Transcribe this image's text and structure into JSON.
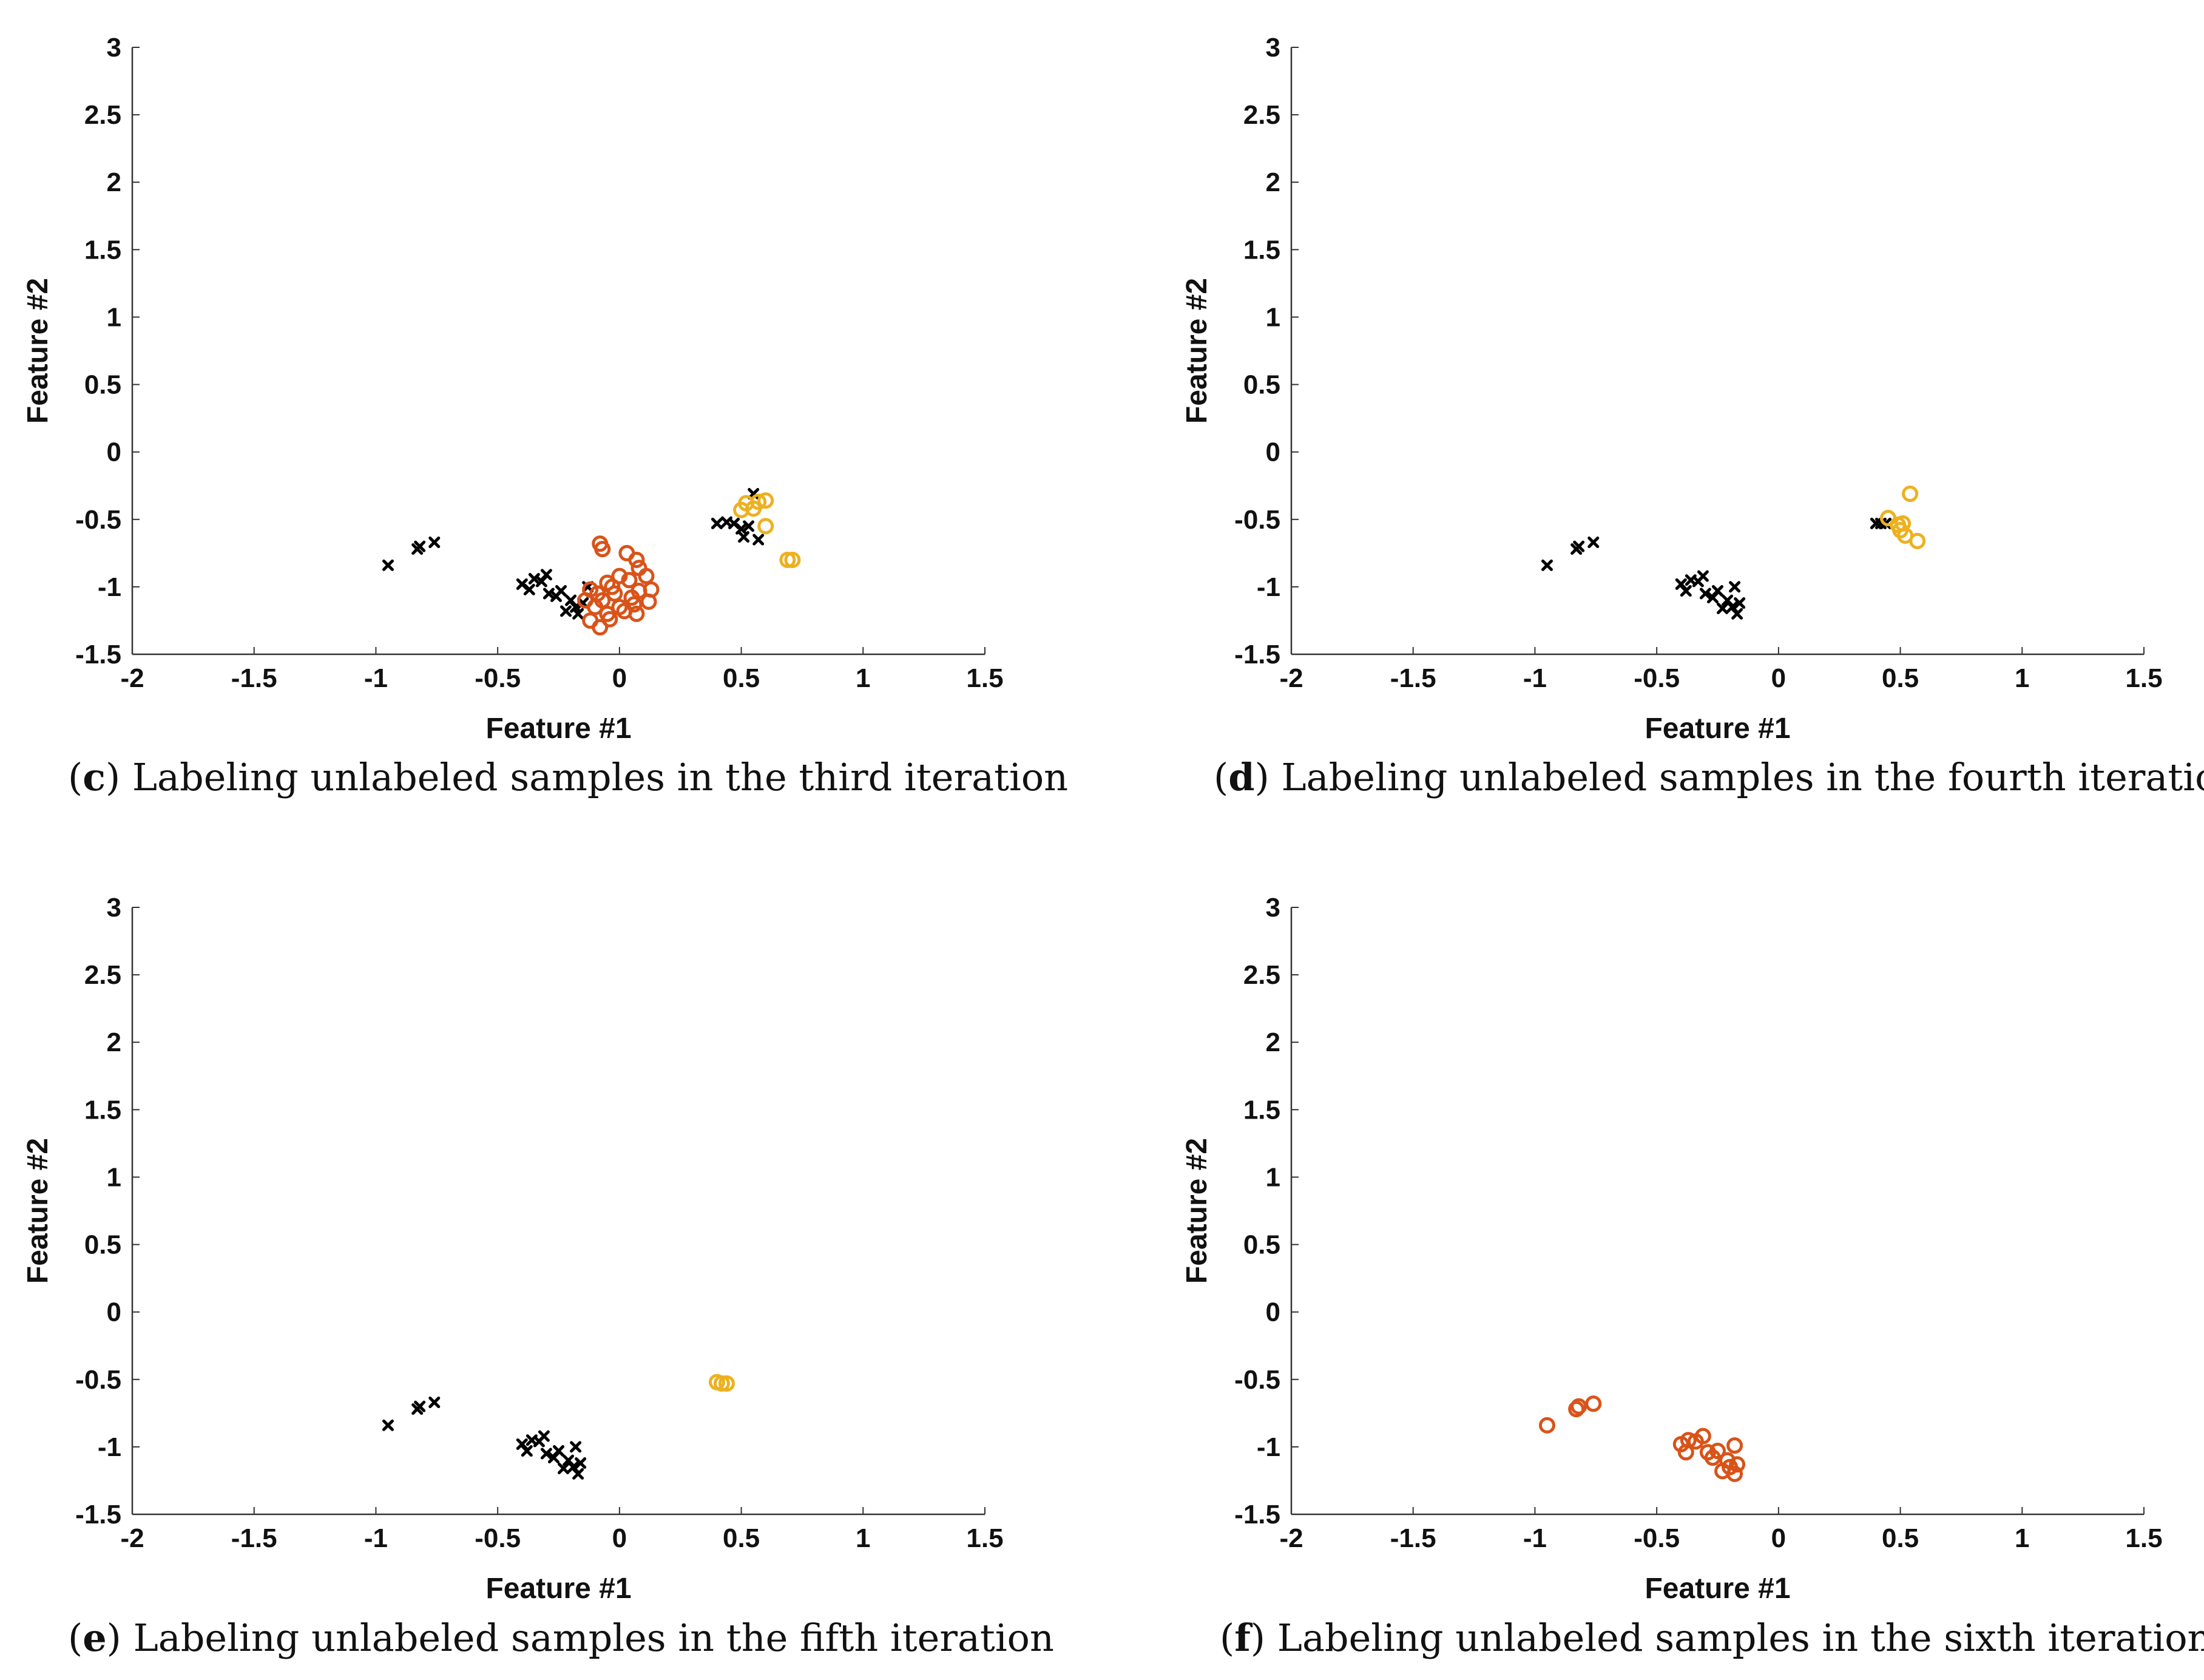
{
  "colors": {
    "black": "#000000",
    "orange": "#D95319",
    "yellow": "#EDB120",
    "axis": "#333333"
  },
  "chart_data": [
    {
      "type": "scatter",
      "panel": "c",
      "caption_letter": "c",
      "caption_text": "Labeling unlabeled samples in the third iteration",
      "xlabel": "Feature #1",
      "ylabel": "Feature #2",
      "xlim": [
        -2,
        1.5
      ],
      "ylim": [
        -1.5,
        3
      ],
      "xticks": [
        "-2",
        "-1.5",
        "-1",
        "-0.5",
        "0",
        "0.5",
        "1",
        "1.5"
      ],
      "yticks": [
        "-1.5",
        "-1",
        "-0.5",
        "0",
        "0.5",
        "1",
        "1.5",
        "2",
        "2.5",
        "3"
      ],
      "series": [
        {
          "name": "unlabeled",
          "marker": "x",
          "color": "#000000",
          "points": [
            [
              -0.95,
              -0.84
            ],
            [
              -0.83,
              -0.72
            ],
            [
              -0.82,
              -0.7
            ],
            [
              -0.76,
              -0.67
            ],
            [
              -0.4,
              -0.98
            ],
            [
              -0.37,
              -1.02
            ],
            [
              -0.35,
              -0.94
            ],
            [
              -0.32,
              -0.96
            ],
            [
              -0.3,
              -0.91
            ],
            [
              -0.29,
              -1.05
            ],
            [
              -0.26,
              -1.07
            ],
            [
              -0.24,
              -1.03
            ],
            [
              -0.22,
              -1.18
            ],
            [
              -0.2,
              -1.1
            ],
            [
              -0.18,
              -1.15
            ],
            [
              -0.17,
              -1.2
            ],
            [
              -0.15,
              -1.12
            ],
            [
              -0.13,
              -1.0
            ],
            [
              0.4,
              -0.53
            ],
            [
              0.44,
              -0.52
            ],
            [
              0.47,
              -0.53
            ],
            [
              0.5,
              -0.57
            ],
            [
              0.51,
              -0.63
            ],
            [
              0.53,
              -0.55
            ],
            [
              0.55,
              -0.31
            ],
            [
              0.57,
              -0.65
            ]
          ]
        },
        {
          "name": "class-orange",
          "marker": "o",
          "color": "#D95319",
          "points": [
            [
              -0.08,
              -0.68
            ],
            [
              -0.07,
              -0.72
            ],
            [
              0.03,
              -0.75
            ],
            [
              0.07,
              -0.8
            ],
            [
              0.08,
              -0.86
            ],
            [
              0.11,
              -0.92
            ],
            [
              0.13,
              -1.02
            ],
            [
              0.12,
              -1.11
            ],
            [
              0.07,
              -1.2
            ],
            [
              -0.08,
              -1.3
            ],
            [
              -0.12,
              -1.25
            ],
            [
              -0.14,
              -1.1
            ],
            [
              -0.12,
              -1.02
            ],
            [
              -0.05,
              -0.97
            ],
            [
              0.0,
              -0.92
            ],
            [
              0.04,
              -0.95
            ],
            [
              -0.02,
              -1.05
            ],
            [
              -0.07,
              -1.1
            ],
            [
              -0.1,
              -1.15
            ],
            [
              -0.05,
              -1.2
            ],
            [
              0.0,
              -1.15
            ],
            [
              0.05,
              -1.08
            ],
            [
              0.08,
              -1.03
            ],
            [
              -0.03,
              -1.0
            ],
            [
              0.02,
              -1.18
            ],
            [
              -0.09,
              -1.05
            ],
            [
              0.06,
              -1.13
            ],
            [
              -0.04,
              -1.24
            ]
          ]
        },
        {
          "name": "class-yellow",
          "marker": "o",
          "color": "#EDB120",
          "points": [
            [
              0.5,
              -0.43
            ],
            [
              0.52,
              -0.38
            ],
            [
              0.55,
              -0.42
            ],
            [
              0.57,
              -0.37
            ],
            [
              0.6,
              -0.36
            ],
            [
              0.6,
              -0.55
            ],
            [
              0.69,
              -0.8
            ],
            [
              0.71,
              -0.8
            ]
          ]
        }
      ]
    },
    {
      "type": "scatter",
      "panel": "d",
      "caption_letter": "d",
      "caption_text": "Labeling unlabeled samples in the fourth iteration",
      "xlabel": "Feature #1",
      "ylabel": "Feature #2",
      "xlim": [
        -2,
        1.5
      ],
      "ylim": [
        -1.5,
        3
      ],
      "xticks": [
        "-2",
        "-1.5",
        "-1",
        "-0.5",
        "0",
        "0.5",
        "1",
        "1.5"
      ],
      "yticks": [
        "-1.5",
        "-1",
        "-0.5",
        "0",
        "0.5",
        "1",
        "1.5",
        "2",
        "2.5",
        "3"
      ],
      "series": [
        {
          "name": "unlabeled",
          "marker": "x",
          "color": "#000000",
          "points": [
            [
              -0.95,
              -0.84
            ],
            [
              -0.83,
              -0.72
            ],
            [
              -0.82,
              -0.7
            ],
            [
              -0.76,
              -0.67
            ],
            [
              -0.4,
              -0.98
            ],
            [
              -0.38,
              -1.03
            ],
            [
              -0.36,
              -0.95
            ],
            [
              -0.33,
              -0.96
            ],
            [
              -0.31,
              -0.92
            ],
            [
              -0.3,
              -1.05
            ],
            [
              -0.27,
              -1.08
            ],
            [
              -0.25,
              -1.03
            ],
            [
              -0.23,
              -1.16
            ],
            [
              -0.21,
              -1.1
            ],
            [
              -0.19,
              -1.15
            ],
            [
              -0.17,
              -1.2
            ],
            [
              -0.16,
              -1.12
            ],
            [
              -0.18,
              -1.0
            ],
            [
              0.4,
              -0.53
            ],
            [
              0.42,
              -0.53
            ],
            [
              0.44,
              -0.53
            ]
          ]
        },
        {
          "name": "class-yellow",
          "marker": "o",
          "color": "#EDB120",
          "points": [
            [
              0.45,
              -0.49
            ],
            [
              0.49,
              -0.54
            ],
            [
              0.5,
              -0.58
            ],
            [
              0.51,
              -0.53
            ],
            [
              0.52,
              -0.62
            ],
            [
              0.54,
              -0.31
            ],
            [
              0.57,
              -0.66
            ]
          ]
        }
      ]
    },
    {
      "type": "scatter",
      "panel": "e",
      "caption_letter": "e",
      "caption_text": "Labeling unlabeled samples in the fifth iteration",
      "xlabel": "Feature #1",
      "ylabel": "Feature #2",
      "xlim": [
        -2,
        1.5
      ],
      "ylim": [
        -1.5,
        3
      ],
      "xticks": [
        "-2",
        "-1.5",
        "-1",
        "-0.5",
        "0",
        "0.5",
        "1",
        "1.5"
      ],
      "yticks": [
        "-1.5",
        "-1",
        "-0.5",
        "0",
        "0.5",
        "1",
        "1.5",
        "2",
        "2.5",
        "3"
      ],
      "series": [
        {
          "name": "unlabeled",
          "marker": "x",
          "color": "#000000",
          "points": [
            [
              -0.95,
              -0.84
            ],
            [
              -0.83,
              -0.72
            ],
            [
              -0.82,
              -0.7
            ],
            [
              -0.76,
              -0.67
            ],
            [
              -0.4,
              -0.98
            ],
            [
              -0.38,
              -1.03
            ],
            [
              -0.36,
              -0.95
            ],
            [
              -0.33,
              -0.96
            ],
            [
              -0.31,
              -0.92
            ],
            [
              -0.3,
              -1.05
            ],
            [
              -0.27,
              -1.08
            ],
            [
              -0.25,
              -1.03
            ],
            [
              -0.23,
              -1.16
            ],
            [
              -0.21,
              -1.1
            ],
            [
              -0.19,
              -1.15
            ],
            [
              -0.17,
              -1.2
            ],
            [
              -0.16,
              -1.12
            ],
            [
              -0.18,
              -1.0
            ]
          ]
        },
        {
          "name": "class-yellow",
          "marker": "o",
          "color": "#EDB120",
          "points": [
            [
              0.4,
              -0.52
            ],
            [
              0.42,
              -0.53
            ],
            [
              0.44,
              -0.53
            ]
          ]
        }
      ]
    },
    {
      "type": "scatter",
      "panel": "f",
      "caption_letter": "f",
      "caption_text": "Labeling unlabeled samples in the sixth iteration",
      "xlabel": "Feature #1",
      "ylabel": "Feature #2",
      "xlim": [
        -2,
        1.5
      ],
      "ylim": [
        -1.5,
        3
      ],
      "xticks": [
        "-2",
        "-1.5",
        "-1",
        "-0.5",
        "0",
        "0.5",
        "1",
        "1.5"
      ],
      "yticks": [
        "-1.5",
        "-1",
        "-0.5",
        "0",
        "0.5",
        "1",
        "1.5",
        "2",
        "2.5",
        "3"
      ],
      "series": [
        {
          "name": "class-orange",
          "marker": "o",
          "color": "#D95319",
          "points": [
            [
              -0.95,
              -0.84
            ],
            [
              -0.83,
              -0.72
            ],
            [
              -0.82,
              -0.7
            ],
            [
              -0.76,
              -0.68
            ],
            [
              -0.4,
              -0.98
            ],
            [
              -0.38,
              -1.04
            ],
            [
              -0.37,
              -0.95
            ],
            [
              -0.34,
              -0.96
            ],
            [
              -0.31,
              -0.92
            ],
            [
              -0.29,
              -1.04
            ],
            [
              -0.27,
              -1.08
            ],
            [
              -0.25,
              -1.03
            ],
            [
              -0.23,
              -1.18
            ],
            [
              -0.21,
              -1.1
            ],
            [
              -0.2,
              -1.15
            ],
            [
              -0.18,
              -1.2
            ],
            [
              -0.17,
              -1.13
            ],
            [
              -0.18,
              -0.99
            ]
          ]
        }
      ]
    }
  ]
}
